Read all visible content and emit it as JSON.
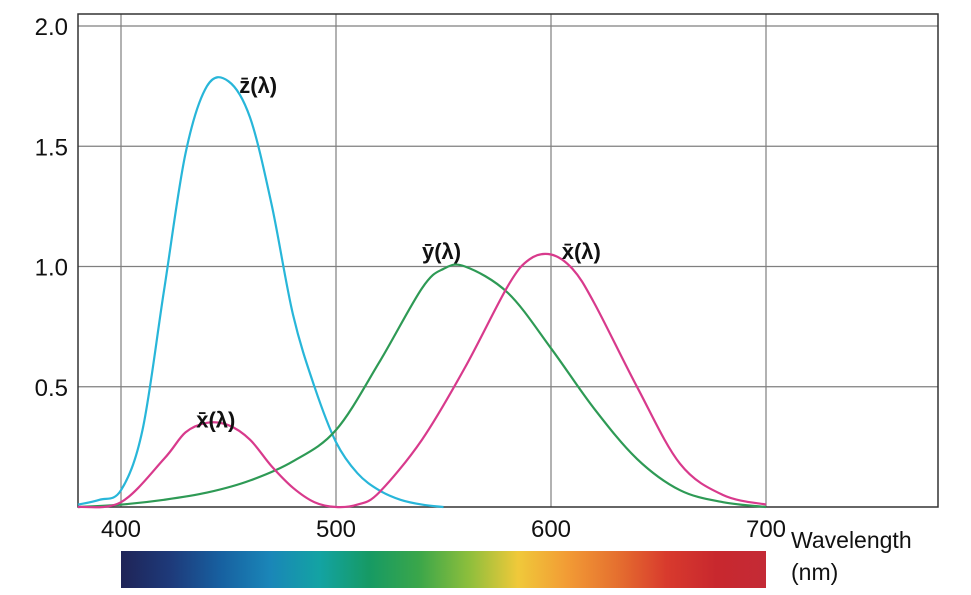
{
  "chart_data": {
    "type": "line",
    "title": "",
    "xlabel": "Wavelength\n(nm)",
    "xlabel_lines": [
      "Wavelength",
      "(nm)"
    ],
    "ylabel": "",
    "xlim": [
      380,
      780
    ],
    "ylim": [
      0,
      2.05
    ],
    "xticks": [
      400,
      500,
      600,
      700
    ],
    "xtick_labels": [
      "400",
      "500",
      "600",
      "700"
    ],
    "yticks": [
      0.5,
      1.0,
      1.5,
      2.0
    ],
    "ytick_labels": [
      "0.5",
      "1.0",
      "1.5",
      "2.0"
    ],
    "grid": true,
    "colors": {
      "grid": "#7f7f7f",
      "axis": "#333333"
    },
    "spectrum_bar": {
      "range": [
        400,
        700
      ],
      "colors": [
        "#1f2457",
        "#1e3a7a",
        "#1760a0",
        "#1a86b8",
        "#13a3a3",
        "#169a64",
        "#3aa64a",
        "#8cbe3c",
        "#f0c93a",
        "#f29b35",
        "#e5702f",
        "#d83a2d",
        "#c8282e",
        "#c42a36"
      ]
    },
    "series": [
      {
        "name": "z̄(λ)",
        "color": "#28b6d9",
        "x": [
          380,
          390,
          400,
          410,
          420,
          430,
          440,
          450,
          460,
          470,
          480,
          490,
          500,
          510,
          520,
          530,
          540,
          550
        ],
        "values": [
          0.01,
          0.03,
          0.07,
          0.32,
          0.9,
          1.47,
          1.75,
          1.77,
          1.62,
          1.26,
          0.8,
          0.5,
          0.27,
          0.14,
          0.07,
          0.03,
          0.01,
          0.0
        ]
      },
      {
        "name": "ȳ(λ)",
        "color": "#2e9a55",
        "x": [
          380,
          400,
          420,
          440,
          460,
          480,
          500,
          520,
          540,
          550,
          560,
          580,
          600,
          620,
          640,
          660,
          680,
          700
        ],
        "values": [
          0.0,
          0.01,
          0.03,
          0.06,
          0.11,
          0.19,
          0.32,
          0.6,
          0.91,
          0.99,
          1.0,
          0.89,
          0.66,
          0.41,
          0.2,
          0.07,
          0.02,
          0.0
        ]
      },
      {
        "name": "x̄(λ)",
        "color": "#d83a8c",
        "x": [
          380,
          400,
          420,
          430,
          440,
          450,
          460,
          470,
          480,
          490,
          500,
          510,
          520,
          540,
          560,
          580,
          590,
          600,
          610,
          620,
          640,
          660,
          680,
          700
        ],
        "values": [
          0.0,
          0.02,
          0.2,
          0.31,
          0.35,
          0.34,
          0.28,
          0.17,
          0.08,
          0.02,
          0.0,
          0.01,
          0.06,
          0.28,
          0.58,
          0.92,
          1.03,
          1.05,
          0.99,
          0.85,
          0.5,
          0.18,
          0.05,
          0.01
        ]
      }
    ],
    "annotations": [
      {
        "text": "z̄(λ)",
        "series": "z̄(λ)",
        "x": 455,
        "y": 1.75
      },
      {
        "text": "ȳ(λ)",
        "series": "ȳ(λ)",
        "x": 540,
        "y": 1.06
      },
      {
        "text": "x̄(λ)",
        "series": "x̄(λ)",
        "x": 605,
        "y": 1.06
      },
      {
        "text": "x̄(λ)",
        "series": "x̄(λ)",
        "x": 435,
        "y": 0.36
      }
    ]
  }
}
